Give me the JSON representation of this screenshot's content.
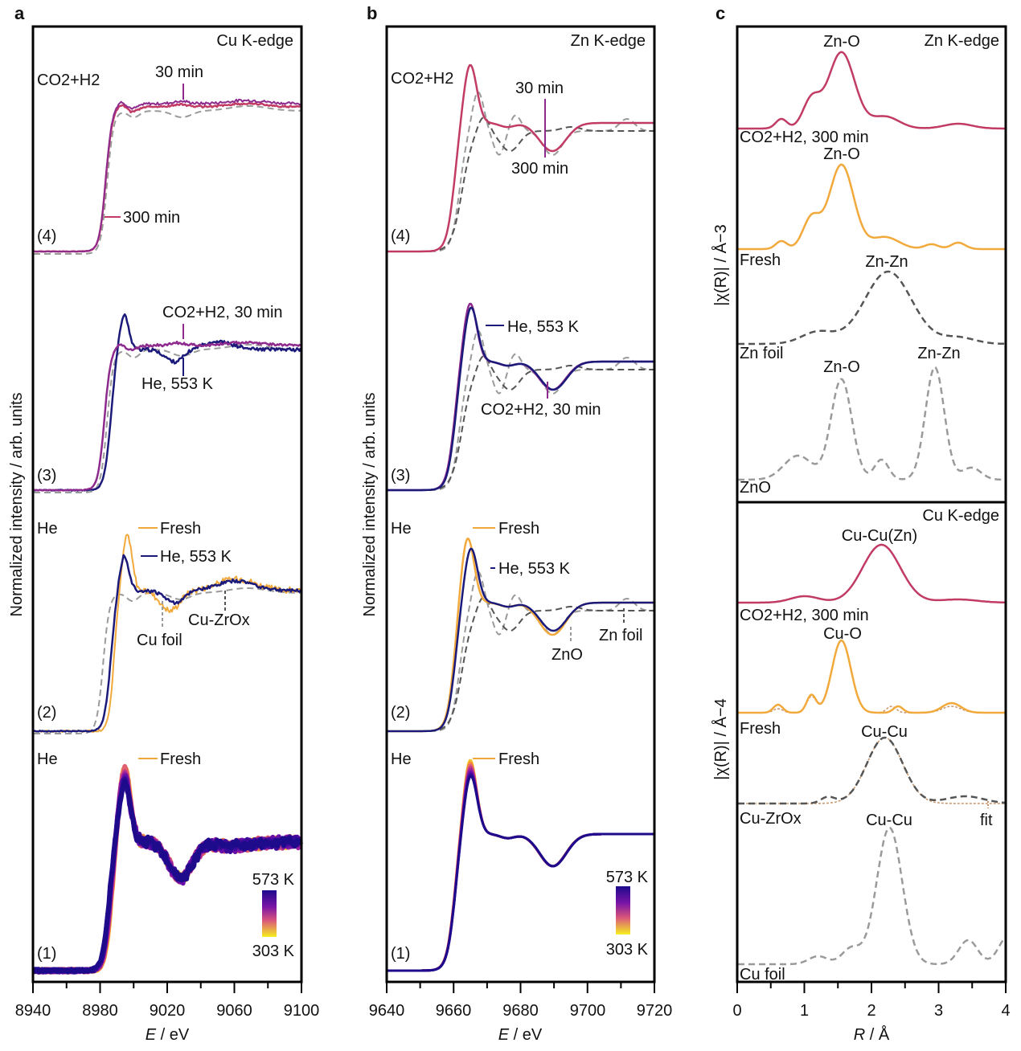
{
  "figure": {
    "panels": [
      {
        "letter": "a",
        "edge": "Cu K-edge",
        "xlabel": "E / eV",
        "ylabel": "Normalized intensity / arb. units"
      },
      {
        "letter": "b",
        "edge": "Zn K-edge",
        "xlabel": "E / eV",
        "ylabel": "Normalized intensity / arb. units"
      },
      {
        "letter": "c",
        "edge_top": "Zn K-edge",
        "edge_bottom": "Cu K-edge",
        "xlabel": "R / Å",
        "ylabel_top": "|χ(R)| / Å−3",
        "ylabel_bottom": "|χ(R)| / Å−4"
      }
    ]
  },
  "colors": {
    "co2_300": "#c23b64",
    "co2_30": "#8e2a8e",
    "he553": "#1b1a7a",
    "fresh": "#f2a93b",
    "ref_light": "#9a9a9a",
    "ref_dark": "#555555",
    "fit": "#c8956a"
  },
  "chart_data": [
    {
      "type": "line",
      "title": "a  Cu K-edge XANES",
      "xlabel": "E / eV",
      "ylabel": "Normalized intensity / arb. units",
      "xlim": [
        8940,
        9100
      ],
      "xticks": [
        8940,
        8980,
        9020,
        9060,
        9100
      ],
      "stacks": [
        {
          "id": "(4)",
          "condition": "CO2+H2",
          "annotations": [
            "30 min",
            "300 min"
          ],
          "series": [
            {
              "name": "CO2+H2, 30 min",
              "color": "co2_30",
              "style": "solid"
            },
            {
              "name": "CO2+H2, 300 min",
              "color": "co2_300",
              "style": "solid"
            },
            {
              "name": "Cu foil",
              "color": "ref_light",
              "style": "dashed"
            }
          ]
        },
        {
          "id": "(3)",
          "condition": "",
          "annotations": [
            "CO2+H2, 30 min",
            "He, 553 K"
          ],
          "series": [
            {
              "name": "He, 553 K",
              "color": "he553",
              "style": "solid"
            },
            {
              "name": "CO2+H2, 30 min",
              "color": "co2_30",
              "style": "solid"
            },
            {
              "name": "Cu foil",
              "color": "ref_light",
              "style": "dashed"
            }
          ]
        },
        {
          "id": "(2)",
          "condition": "He",
          "annotations": [
            "Fresh",
            "He, 553 K",
            "Cu foil",
            "Cu-ZrOx"
          ],
          "series": [
            {
              "name": "Fresh",
              "color": "fresh",
              "style": "solid"
            },
            {
              "name": "He, 553 K",
              "color": "he553",
              "style": "solid"
            },
            {
              "name": "Cu foil",
              "color": "ref_light",
              "style": "dashed"
            }
          ]
        },
        {
          "id": "(1)",
          "condition": "He",
          "annotations": [
            "Fresh"
          ],
          "colorbar": {
            "max": "573 K",
            "min": "303 K"
          },
          "series": [
            {
              "name": "Temperature series 303–573 K",
              "style": "solid"
            }
          ]
        }
      ]
    },
    {
      "type": "line",
      "title": "b  Zn K-edge XANES",
      "xlabel": "E / eV",
      "ylabel": "Normalized intensity / arb. units",
      "xlim": [
        9640,
        9720
      ],
      "xticks": [
        9640,
        9660,
        9680,
        9700,
        9720
      ],
      "stacks": [
        {
          "id": "(4)",
          "condition": "CO2+H2",
          "annotations": [
            "30 min",
            "300 min"
          ]
        },
        {
          "id": "(3)",
          "condition": "",
          "annotations": [
            "He, 553 K",
            "CO2+H2, 30 min"
          ]
        },
        {
          "id": "(2)",
          "condition": "He",
          "annotations": [
            "Fresh",
            "He, 553 K",
            "ZnO",
            "Zn foil"
          ]
        },
        {
          "id": "(1)",
          "condition": "He",
          "annotations": [
            "Fresh"
          ],
          "colorbar": {
            "max": "573 K",
            "min": "303 K"
          }
        }
      ]
    },
    {
      "type": "line",
      "title": "c  EXAFS |χ(R)|",
      "xlabel": "R / Å",
      "xlim": [
        0,
        4
      ],
      "xticks": [
        0,
        1,
        2,
        3,
        4
      ],
      "top": {
        "edge": "Zn K-edge",
        "ylabel": "|χ(R)| / Å−3",
        "traces": [
          {
            "name": "CO2+H2, 300 min",
            "peak": "Zn-O",
            "peak_R": 1.55
          },
          {
            "name": "Fresh",
            "peak": "Zn-O",
            "peak_R": 1.55
          },
          {
            "name": "Zn foil",
            "peak": "Zn-Zn",
            "peak_R": 2.25
          },
          {
            "name": "ZnO",
            "peaks": [
              "Zn-O",
              "Zn-Zn"
            ],
            "peak_R": [
              1.55,
              2.95
            ]
          }
        ]
      },
      "bottom": {
        "edge": "Cu K-edge",
        "ylabel": "|χ(R)| / Å−4",
        "traces": [
          {
            "name": "CO2+H2, 300 min",
            "peak": "Cu-Cu(Zn)",
            "peak_R": 2.15
          },
          {
            "name": "Fresh",
            "peak": "Cu-O",
            "peak_R": 1.55
          },
          {
            "name": "Cu-ZrOx",
            "peak": "Cu-Cu",
            "peak_R": 2.2,
            "fit_label": "fit"
          },
          {
            "name": "Cu foil",
            "peak": "Cu-Cu",
            "peak_R": 2.25
          }
        ]
      }
    }
  ],
  "labels": {
    "a": {
      "letter": "a",
      "edge": "Cu K-edge",
      "s4": {
        "num": "(4)",
        "cond": "CO2+H2",
        "t30": "30 min",
        "t300": "300 min"
      },
      "s3": {
        "num": "(3)",
        "co2": "CO2+H2, 30 min",
        "he": "He, 553 K"
      },
      "s2": {
        "num": "(2)",
        "cond": "He",
        "fresh": "Fresh",
        "he": "He, 553 K",
        "foil": "Cu foil",
        "zro": "Cu-ZrOx"
      },
      "s1": {
        "num": "(1)",
        "cond": "He",
        "fresh": "Fresh",
        "tmax": "573 K",
        "tmin": "303 K"
      },
      "ticks": [
        "8940",
        "8980",
        "9020",
        "9060",
        "9100"
      ],
      "xlabel_var": "E",
      "xlabel_unit": " / eV",
      "ylabel": "Normalized intensity / arb. units"
    },
    "b": {
      "letter": "b",
      "edge": "Zn K-edge",
      "s4": {
        "num": "(4)",
        "cond": "CO2+H2",
        "t30": "30 min",
        "t300": "300 min"
      },
      "s3": {
        "num": "(3)",
        "co2": "CO2+H2, 30 min",
        "he": "He, 553 K"
      },
      "s2": {
        "num": "(2)",
        "cond": "He",
        "fresh": "Fresh",
        "he": "He, 553 K",
        "zno": "ZnO",
        "foil": "Zn foil"
      },
      "s1": {
        "num": "(1)",
        "cond": "He",
        "fresh": "Fresh",
        "tmax": "573 K",
        "tmin": "303 K"
      },
      "ticks": [
        "9640",
        "9660",
        "9680",
        "9700",
        "9720"
      ],
      "xlabel_var": "E",
      "xlabel_unit": " / eV",
      "ylabel": "Normalized intensity / arb. units"
    },
    "c": {
      "letter": "c",
      "zn_edge": "Zn K-edge",
      "cu_edge": "Cu K-edge",
      "zn": {
        "co2": "CO2+H2, 300 min",
        "zno_peak": "Zn-O",
        "fresh": "Fresh",
        "znzn": "Zn-Zn",
        "foil": "Zn foil",
        "zno": "ZnO"
      },
      "cu": {
        "co2": "CO2+H2, 300 min",
        "cucuzn": "Cu-Cu(Zn)",
        "cuo": "Cu-O",
        "fresh": "Fresh",
        "cucu": "Cu-Cu",
        "zro": "Cu-ZrOx",
        "fit": "fit",
        "foil": "Cu foil"
      },
      "ticks": [
        "0",
        "1",
        "2",
        "3",
        "4"
      ],
      "xlabel_var": "R",
      "xlabel_unit": " / Å",
      "ylabel_top": "|χ(R)| / Å−3",
      "ylabel_bottom": "|χ(R)| / Å−4"
    }
  }
}
